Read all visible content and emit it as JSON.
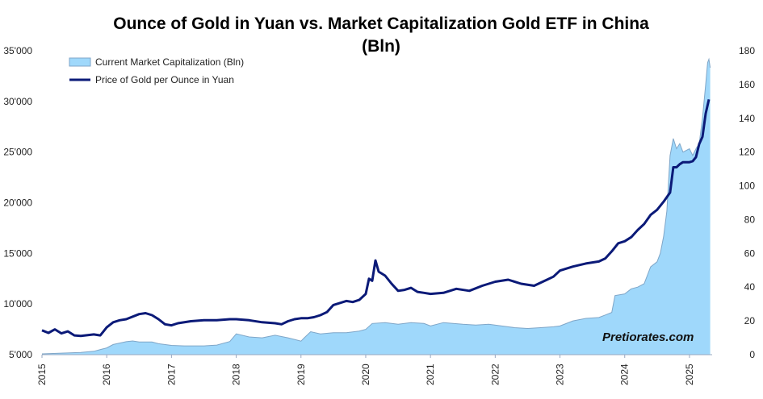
{
  "chart_data": {
    "type": "area+line",
    "title_line1": "Ounce of Gold in Yuan vs. Market Capitalization Gold ETF in China",
    "title_line2": "(Bln)",
    "x_labels": [
      "2015",
      "2016",
      "2017",
      "2018",
      "2019",
      "2020",
      "2021",
      "2022",
      "2023",
      "2024",
      "2025"
    ],
    "x_range": [
      2015.0,
      2025.35
    ],
    "y_left": {
      "range": [
        5000,
        35000
      ],
      "ticks": [
        5000,
        10000,
        15000,
        20000,
        25000,
        30000,
        35000
      ],
      "tick_labels": [
        "5'000",
        "10'000",
        "15'000",
        "20'000",
        "25'000",
        "30'000",
        "35'000"
      ]
    },
    "y_right": {
      "range": [
        0,
        180
      ],
      "ticks": [
        0,
        20,
        40,
        60,
        80,
        100,
        120,
        140,
        160,
        180
      ],
      "tick_labels": [
        "0",
        "20",
        "40",
        "60",
        "80",
        "100",
        "120",
        "140",
        "160",
        "180"
      ]
    },
    "series": [
      {
        "name": "Current Market Capitalization (Bln)",
        "type": "area",
        "axis": "right",
        "color": "#9fd8fb",
        "edge_color": "#7fa6c8",
        "points": [
          [
            2015.0,
            0.5
          ],
          [
            2015.3,
            0.9
          ],
          [
            2015.6,
            1.3
          ],
          [
            2015.8,
            2.0
          ],
          [
            2016.0,
            4.0
          ],
          [
            2016.1,
            6.0
          ],
          [
            2016.3,
            7.7
          ],
          [
            2016.4,
            8.1
          ],
          [
            2016.5,
            7.5
          ],
          [
            2016.7,
            7.5
          ],
          [
            2016.8,
            6.5
          ],
          [
            2017.0,
            5.5
          ],
          [
            2017.2,
            5.2
          ],
          [
            2017.5,
            5.2
          ],
          [
            2017.7,
            5.7
          ],
          [
            2017.9,
            7.8
          ],
          [
            2018.0,
            12.3
          ],
          [
            2018.2,
            10.5
          ],
          [
            2018.4,
            10.0
          ],
          [
            2018.6,
            11.5
          ],
          [
            2018.8,
            10.0
          ],
          [
            2018.9,
            9.0
          ],
          [
            2019.0,
            8.0
          ],
          [
            2019.05,
            10.0
          ],
          [
            2019.15,
            13.6
          ],
          [
            2019.3,
            12.3
          ],
          [
            2019.5,
            13.0
          ],
          [
            2019.7,
            13.0
          ],
          [
            2019.9,
            14.0
          ],
          [
            2020.0,
            15.0
          ],
          [
            2020.1,
            18.5
          ],
          [
            2020.3,
            19.0
          ],
          [
            2020.5,
            18.0
          ],
          [
            2020.7,
            19.0
          ],
          [
            2020.9,
            18.5
          ],
          [
            2021.0,
            17.0
          ],
          [
            2021.2,
            19.0
          ],
          [
            2021.5,
            18.0
          ],
          [
            2021.7,
            17.5
          ],
          [
            2021.9,
            18.0
          ],
          [
            2022.1,
            17.0
          ],
          [
            2022.3,
            16.0
          ],
          [
            2022.5,
            15.5
          ],
          [
            2022.7,
            16.0
          ],
          [
            2022.9,
            16.5
          ],
          [
            2023.0,
            17.0
          ],
          [
            2023.2,
            20.0
          ],
          [
            2023.4,
            21.5
          ],
          [
            2023.6,
            22.0
          ],
          [
            2023.7,
            23.5
          ],
          [
            2023.8,
            25.0
          ],
          [
            2023.85,
            35.0
          ],
          [
            2024.0,
            36.0
          ],
          [
            2024.1,
            39.0
          ],
          [
            2024.2,
            40.0
          ],
          [
            2024.3,
            42.0
          ],
          [
            2024.4,
            52.0
          ],
          [
            2024.5,
            55.0
          ],
          [
            2024.55,
            60.0
          ],
          [
            2024.6,
            70.0
          ],
          [
            2024.65,
            85.0
          ],
          [
            2024.7,
            118.0
          ],
          [
            2024.75,
            128.0
          ],
          [
            2024.8,
            122.0
          ],
          [
            2024.85,
            125.0
          ],
          [
            2024.9,
            120.0
          ],
          [
            2025.0,
            122.0
          ],
          [
            2025.05,
            118.0
          ],
          [
            2025.1,
            122.0
          ],
          [
            2025.15,
            125.0
          ],
          [
            2025.2,
            140.0
          ],
          [
            2025.25,
            160.0
          ],
          [
            2025.28,
            173.0
          ],
          [
            2025.3,
            175.0
          ],
          [
            2025.32,
            170.0
          ]
        ]
      },
      {
        "name": "Price of Gold per Ounce in Yuan",
        "type": "line",
        "axis": "left",
        "color": "#0b1a78",
        "points": [
          [
            2015.0,
            7400
          ],
          [
            2015.1,
            7150
          ],
          [
            2015.2,
            7500
          ],
          [
            2015.3,
            7100
          ],
          [
            2015.4,
            7300
          ],
          [
            2015.5,
            6900
          ],
          [
            2015.6,
            6850
          ],
          [
            2015.8,
            7000
          ],
          [
            2015.9,
            6900
          ],
          [
            2016.0,
            7700
          ],
          [
            2016.1,
            8200
          ],
          [
            2016.2,
            8400
          ],
          [
            2016.3,
            8500
          ],
          [
            2016.5,
            9000
          ],
          [
            2016.6,
            9100
          ],
          [
            2016.7,
            8900
          ],
          [
            2016.8,
            8500
          ],
          [
            2016.9,
            8000
          ],
          [
            2017.0,
            7900
          ],
          [
            2017.1,
            8100
          ],
          [
            2017.3,
            8300
          ],
          [
            2017.5,
            8400
          ],
          [
            2017.7,
            8400
          ],
          [
            2017.9,
            8500
          ],
          [
            2018.0,
            8500
          ],
          [
            2018.2,
            8400
          ],
          [
            2018.4,
            8200
          ],
          [
            2018.6,
            8100
          ],
          [
            2018.7,
            8000
          ],
          [
            2018.8,
            8300
          ],
          [
            2018.9,
            8500
          ],
          [
            2019.0,
            8600
          ],
          [
            2019.1,
            8600
          ],
          [
            2019.2,
            8700
          ],
          [
            2019.3,
            8900
          ],
          [
            2019.4,
            9200
          ],
          [
            2019.5,
            9900
          ],
          [
            2019.6,
            10100
          ],
          [
            2019.7,
            10300
          ],
          [
            2019.8,
            10200
          ],
          [
            2019.9,
            10400
          ],
          [
            2020.0,
            11000
          ],
          [
            2020.05,
            12500
          ],
          [
            2020.1,
            12300
          ],
          [
            2020.15,
            14300
          ],
          [
            2020.2,
            13200
          ],
          [
            2020.3,
            12800
          ],
          [
            2020.4,
            12000
          ],
          [
            2020.5,
            11300
          ],
          [
            2020.6,
            11400
          ],
          [
            2020.7,
            11600
          ],
          [
            2020.8,
            11200
          ],
          [
            2020.9,
            11100
          ],
          [
            2021.0,
            11000
          ],
          [
            2021.2,
            11100
          ],
          [
            2021.4,
            11500
          ],
          [
            2021.6,
            11300
          ],
          [
            2021.8,
            11800
          ],
          [
            2022.0,
            12200
          ],
          [
            2022.2,
            12400
          ],
          [
            2022.4,
            12000
          ],
          [
            2022.6,
            11800
          ],
          [
            2022.8,
            12400
          ],
          [
            2022.9,
            12700
          ],
          [
            2023.0,
            13300
          ],
          [
            2023.2,
            13700
          ],
          [
            2023.4,
            14000
          ],
          [
            2023.6,
            14200
          ],
          [
            2023.7,
            14500
          ],
          [
            2023.8,
            15200
          ],
          [
            2023.9,
            16000
          ],
          [
            2024.0,
            16200
          ],
          [
            2024.1,
            16600
          ],
          [
            2024.2,
            17300
          ],
          [
            2024.3,
            17900
          ],
          [
            2024.4,
            18800
          ],
          [
            2024.5,
            19300
          ],
          [
            2024.6,
            20100
          ],
          [
            2024.7,
            21000
          ],
          [
            2024.75,
            23500
          ],
          [
            2024.8,
            23500
          ],
          [
            2024.85,
            23800
          ],
          [
            2024.9,
            24000
          ],
          [
            2025.0,
            24000
          ],
          [
            2025.05,
            24100
          ],
          [
            2025.1,
            24500
          ],
          [
            2025.15,
            25800
          ],
          [
            2025.2,
            26500
          ],
          [
            2025.25,
            28800
          ],
          [
            2025.3,
            30200
          ]
        ]
      }
    ],
    "legend_position": "top-left",
    "grid": false,
    "watermark": "Pretiorates.com"
  }
}
